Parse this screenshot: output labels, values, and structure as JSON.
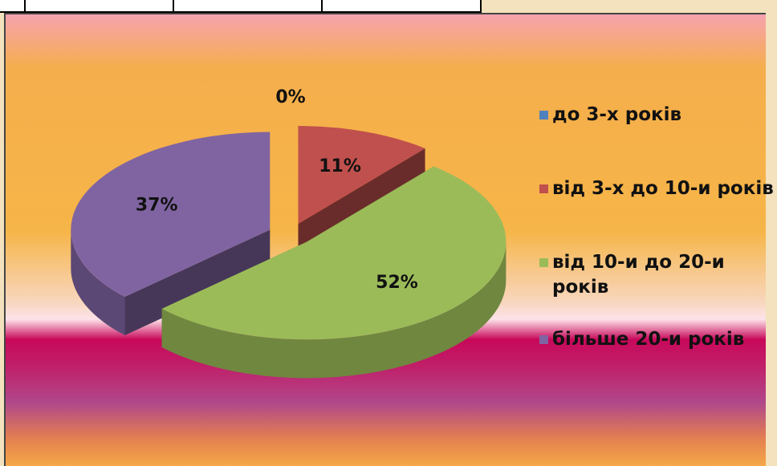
{
  "chart_data": {
    "type": "pie",
    "categories": [
      "до 3-х років",
      "від 3-х до 10-и років",
      "від 10-и до 20-и років",
      "більше 20-и років"
    ],
    "values": [
      0,
      11,
      52,
      37
    ],
    "value_labels": [
      "0%",
      "11%",
      "52%",
      "37%"
    ],
    "colors": [
      "#4f81bd",
      "#c0504d",
      "#9bbb59",
      "#8064a2"
    ],
    "legend": "right"
  }
}
